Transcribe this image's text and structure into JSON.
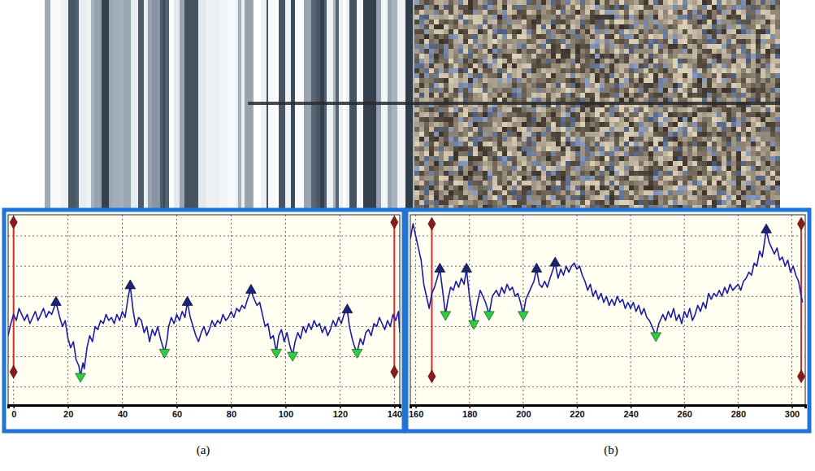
{
  "chart_data": [
    {
      "type": "line",
      "title": "(a)",
      "xlim": [
        -2,
        142
      ],
      "xticks": [
        0,
        20,
        40,
        60,
        80,
        100,
        120,
        140
      ],
      "ylim": [
        -0.6,
        5.7
      ],
      "yticks": [
        0,
        1,
        2,
        3,
        4,
        5
      ],
      "grid": true,
      "tick_labels": "x",
      "series": [
        {
          "type": "line",
          "color": "#1c1ca8",
          "x": [
            -2,
            -1,
            0,
            1,
            2,
            3,
            4,
            5,
            6,
            7,
            8,
            9,
            10,
            11,
            12,
            13,
            14,
            15.6,
            17,
            18,
            19,
            20,
            21,
            22,
            23,
            24,
            24.6,
            25.5,
            26,
            27,
            28,
            29,
            30,
            31,
            32,
            33,
            34,
            35,
            36,
            37,
            38,
            39,
            40,
            41,
            42,
            42.9,
            44,
            45,
            46,
            47,
            48,
            49,
            50,
            51,
            52,
            53,
            54,
            55.5,
            56.5,
            57,
            58,
            59,
            60,
            61,
            62,
            63,
            63.9,
            65,
            66,
            67,
            68,
            69,
            70,
            71,
            72,
            73,
            74,
            75,
            76,
            77,
            78,
            79,
            80,
            81,
            82,
            83,
            84,
            85,
            86,
            87.3,
            88.5,
            89.5,
            90.5,
            91.5,
            92.5,
            93.5,
            94.5,
            95.5,
            96.6,
            97.5,
            98.5,
            99.5,
            100.5,
            101.5,
            102.6,
            103.5,
            104.5,
            105.5,
            106.5,
            107.5,
            108.5,
            109.5,
            110.5,
            111.5,
            112.5,
            113.5,
            114.5,
            115.5,
            116.5,
            117.5,
            118.5,
            119.5,
            120.5,
            121.5,
            122.7,
            123.5,
            124.5,
            125.5,
            126.3,
            127.5,
            128.5,
            129.5,
            130.5,
            131.5,
            132.5,
            133.5,
            134.5,
            135.5,
            136.5,
            137.5,
            138.5,
            139.5,
            140.5,
            141.5,
            142
          ],
          "values": [
            1.7,
            2.1,
            2.4,
            2.2,
            2.6,
            2.4,
            2.2,
            2.4,
            2.1,
            2.3,
            2.5,
            2.2,
            2.4,
            2.6,
            2.3,
            2.5,
            2.4,
            2.8,
            2.3,
            2.0,
            2.2,
            1.6,
            1.3,
            1.5,
            0.9,
            0.7,
            0.35,
            0.8,
            0.6,
            1.3,
            1.7,
            1.5,
            2.0,
            1.9,
            2.2,
            2.1,
            2.4,
            2.2,
            2.3,
            2.1,
            2.4,
            2.2,
            2.5,
            2.3,
            2.9,
            3.35,
            2.5,
            2.0,
            2.3,
            2.2,
            1.8,
            2.0,
            1.5,
            1.9,
            1.7,
            2.0,
            1.6,
            1.15,
            1.6,
            2.0,
            2.3,
            2.1,
            2.4,
            2.2,
            2.5,
            2.3,
            2.8,
            2.3,
            2.0,
            1.7,
            1.5,
            1.8,
            2.0,
            1.7,
            1.9,
            2.2,
            2.0,
            2.2,
            2.1,
            2.4,
            2.2,
            2.3,
            2.5,
            2.3,
            2.6,
            2.5,
            2.7,
            2.6,
            2.9,
            3.2,
            2.9,
            2.7,
            2.8,
            2.4,
            2.0,
            2.1,
            1.6,
            1.7,
            1.15,
            1.7,
            1.9,
            1.5,
            1.8,
            1.4,
            1.05,
            1.5,
            1.8,
            1.6,
            2.0,
            1.8,
            2.1,
            1.9,
            2.2,
            2.0,
            2.1,
            1.8,
            2.0,
            1.7,
            1.9,
            2.2,
            2.0,
            2.3,
            2.1,
            2.4,
            2.55,
            2.0,
            1.6,
            1.3,
            1.15,
            1.6,
            1.4,
            1.8,
            1.9,
            1.7,
            2.1,
            2.0,
            2.3,
            2.1,
            1.9,
            2.2,
            2.0,
            2.4,
            2.2,
            2.5,
            1.8
          ]
        },
        {
          "type": "scatter",
          "marker": "triangle-up",
          "color": "#1a2470",
          "x": [
            15.6,
            42.9,
            63.9,
            87.3,
            122.7
          ],
          "values": [
            2.8,
            3.35,
            2.8,
            3.2,
            2.55
          ]
        },
        {
          "type": "scatter",
          "marker": "triangle-down",
          "color": "#2ecc40",
          "x": [
            24.6,
            55.5,
            96.6,
            102.6,
            126.3
          ],
          "values": [
            0.35,
            1.15,
            1.15,
            1.05,
            1.15
          ]
        }
      ],
      "cursors": {
        "color": "#d42a2a",
        "marker": "diamond",
        "x": [
          0,
          140
        ],
        "y_range": [
          0.5,
          5.45
        ]
      }
    },
    {
      "type": "line",
      "title": "(b)",
      "xlim": [
        158,
        305
      ],
      "xticks": [
        160,
        180,
        200,
        220,
        240,
        260,
        280,
        300
      ],
      "ylim": [
        -0.6,
        5.7
      ],
      "yticks": [
        0,
        1,
        2,
        3,
        4,
        5
      ],
      "grid": true,
      "tick_labels": "x",
      "series": [
        {
          "type": "line",
          "color": "#1c1ca8",
          "x": [
            158,
            159,
            160,
            161,
            162,
            163,
            164,
            165,
            166,
            167,
            168,
            169,
            170,
            171.1,
            172,
            173,
            174,
            175,
            176,
            177,
            178,
            178.9,
            180,
            181.6,
            183,
            184,
            185,
            186,
            187.3,
            188.5,
            190,
            191,
            192,
            193,
            194,
            195,
            196,
            197,
            198,
            199,
            200,
            201,
            202,
            203,
            204,
            205,
            206,
            207,
            208,
            209,
            210,
            211.9,
            213,
            214,
            215,
            216,
            217,
            218,
            219,
            220,
            221,
            222,
            223,
            224,
            225,
            226,
            227,
            228,
            229,
            230,
            231,
            232,
            233,
            234,
            235,
            236,
            237,
            238,
            239,
            240,
            241,
            242,
            243,
            244,
            245,
            246,
            247,
            248,
            249.4,
            250.5,
            252,
            253,
            254,
            255,
            256,
            257,
            258,
            259,
            260,
            261,
            262,
            263,
            264,
            265,
            266,
            267,
            268,
            269,
            270,
            271,
            272,
            273,
            274,
            275,
            276,
            277,
            278,
            279,
            280,
            281,
            282,
            283,
            284,
            285,
            286,
            287,
            288,
            289,
            290.5,
            291.5,
            292.5,
            293.5,
            294.5,
            295.5,
            296.5,
            297.5,
            298.5,
            299.5,
            300.5,
            301.5,
            302.5,
            303.5,
            304
          ],
          "values": [
            4.9,
            5.4,
            5.0,
            4.6,
            4.2,
            3.4,
            3.0,
            2.6,
            3.1,
            3.3,
            3.6,
            3.9,
            3.2,
            2.4,
            2.9,
            3.3,
            3.2,
            3.5,
            3.3,
            3.6,
            3.4,
            3.9,
            3.0,
            2.1,
            2.8,
            3.2,
            3.0,
            2.8,
            2.4,
            3.0,
            3.2,
            3.0,
            3.3,
            3.1,
            3.4,
            3.2,
            3.3,
            3.0,
            3.1,
            2.8,
            2.4,
            2.9,
            3.1,
            3.3,
            3.5,
            3.9,
            3.4,
            3.3,
            3.5,
            3.3,
            3.6,
            4.1,
            3.6,
            3.9,
            3.7,
            4.0,
            3.8,
            4.0,
            4.1,
            3.9,
            4.0,
            3.7,
            3.5,
            3.2,
            3.4,
            3.0,
            3.2,
            2.9,
            3.1,
            2.8,
            3.0,
            2.7,
            2.9,
            2.7,
            3.0,
            2.8,
            2.9,
            2.6,
            2.8,
            2.6,
            2.8,
            2.5,
            2.7,
            2.4,
            2.6,
            2.3,
            2.2,
            2.0,
            1.7,
            2.1,
            2.4,
            2.2,
            2.5,
            2.3,
            2.6,
            2.2,
            2.4,
            2.1,
            2.5,
            2.3,
            2.6,
            2.2,
            2.4,
            2.7,
            2.5,
            2.8,
            2.6,
            3.1,
            2.9,
            3.1,
            3.0,
            3.2,
            3.0,
            3.3,
            3.1,
            3.4,
            3.2,
            3.3,
            3.4,
            3.2,
            3.5,
            3.6,
            3.8,
            3.7,
            4.1,
            4.0,
            4.5,
            4.3,
            5.2,
            4.8,
            4.6,
            4.4,
            4.6,
            4.2,
            4.3,
            4.0,
            4.2,
            3.8,
            4.0,
            3.7,
            3.5,
            3.0,
            2.8
          ]
        },
        {
          "type": "scatter",
          "marker": "triangle-up",
          "color": "#1a2470",
          "x": [
            169,
            178.9,
            205,
            211.9,
            290.5
          ],
          "values": [
            3.9,
            3.9,
            3.9,
            4.1,
            5.2
          ]
        },
        {
          "type": "scatter",
          "marker": "triangle-down",
          "color": "#2ecc40",
          "x": [
            171.1,
            181.6,
            187.3,
            200,
            249.4
          ],
          "values": [
            2.4,
            2.1,
            2.4,
            2.4,
            1.7
          ]
        }
      ],
      "cursors": {
        "color": "#d42a2a",
        "marker": "diamond",
        "x": [
          166,
          303.5
        ],
        "y_range": [
          0.35,
          5.4
        ]
      }
    }
  ]
}
